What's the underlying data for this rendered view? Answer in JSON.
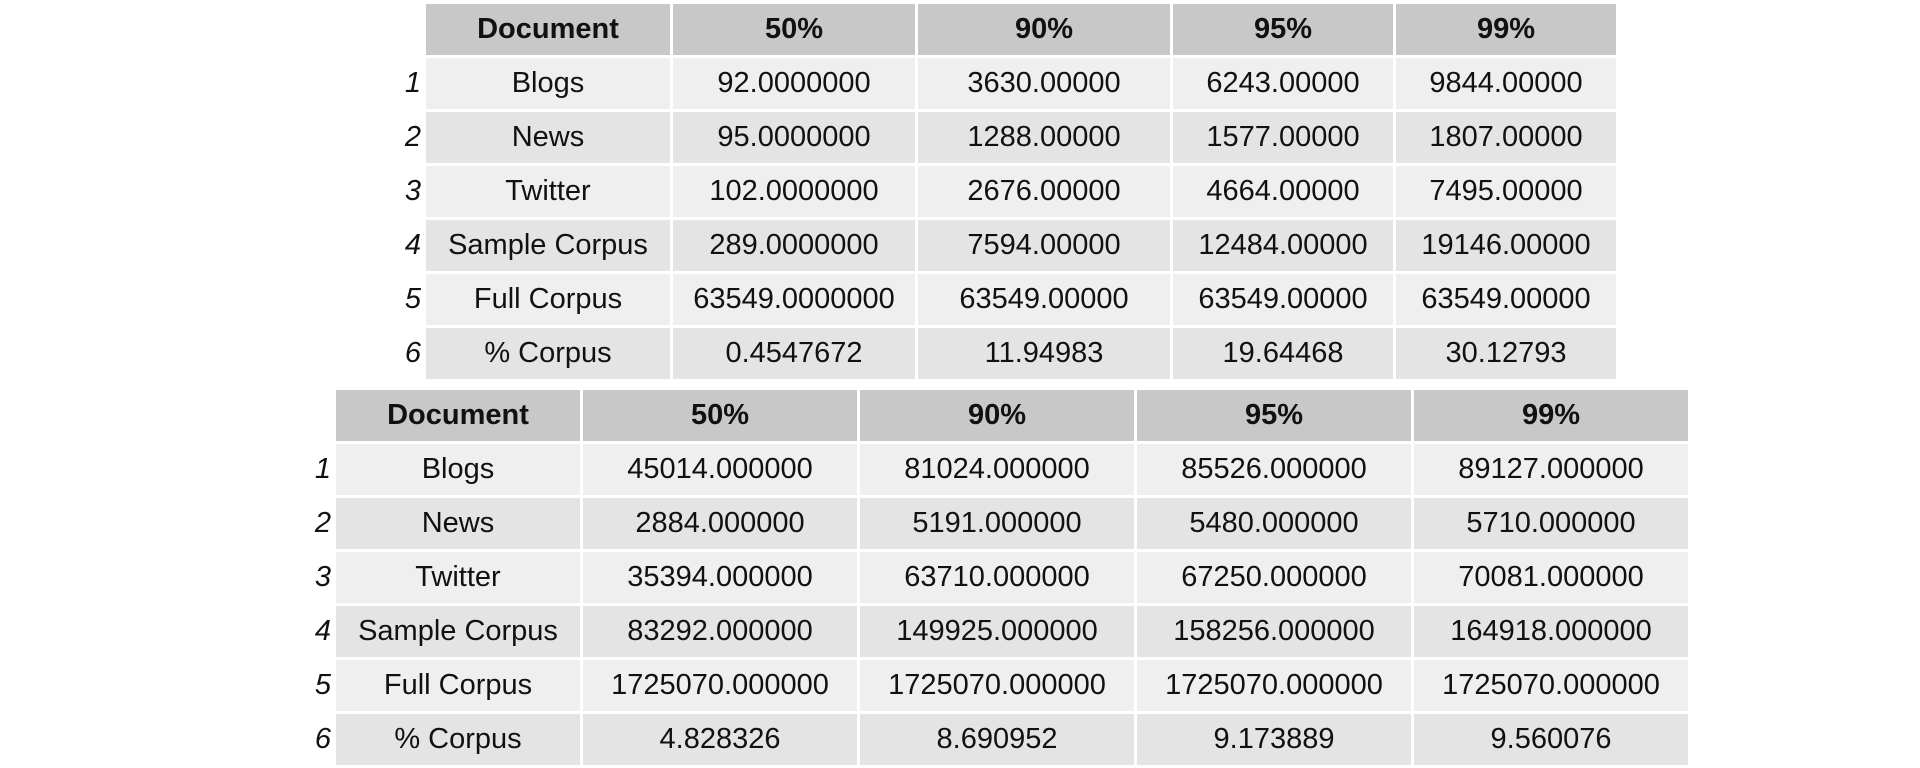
{
  "tables": [
    {
      "headers": [
        "Document",
        "50%",
        "90%",
        "95%",
        "99%"
      ],
      "rows": [
        {
          "n": "1",
          "cells": [
            "Blogs",
            "92.0000000",
            "3630.00000",
            "6243.00000",
            "9844.00000"
          ]
        },
        {
          "n": "2",
          "cells": [
            "News",
            "95.0000000",
            "1288.00000",
            "1577.00000",
            "1807.00000"
          ]
        },
        {
          "n": "3",
          "cells": [
            "Twitter",
            "102.0000000",
            "2676.00000",
            "4664.00000",
            "7495.00000"
          ]
        },
        {
          "n": "4",
          "cells": [
            "Sample Corpus",
            "289.0000000",
            "7594.00000",
            "12484.00000",
            "19146.00000"
          ]
        },
        {
          "n": "5",
          "cells": [
            "Full Corpus",
            "63549.0000000",
            "63549.00000",
            "63549.00000",
            "63549.00000"
          ]
        },
        {
          "n": "6",
          "cells": [
            "% Corpus",
            "0.4547672",
            "11.94983",
            "19.64468",
            "30.12793"
          ]
        }
      ]
    },
    {
      "headers": [
        "Document",
        "50%",
        "90%",
        "95%",
        "99%"
      ],
      "rows": [
        {
          "n": "1",
          "cells": [
            "Blogs",
            "45014.000000",
            "81024.000000",
            "85526.000000",
            "89127.000000"
          ]
        },
        {
          "n": "2",
          "cells": [
            "News",
            "2884.000000",
            "5191.000000",
            "5480.000000",
            "5710.000000"
          ]
        },
        {
          "n": "3",
          "cells": [
            "Twitter",
            "35394.000000",
            "63710.000000",
            "67250.000000",
            "70081.000000"
          ]
        },
        {
          "n": "4",
          "cells": [
            "Sample Corpus",
            "83292.000000",
            "149925.000000",
            "158256.000000",
            "164918.000000"
          ]
        },
        {
          "n": "5",
          "cells": [
            "Full Corpus",
            "1725070.000000",
            "1725070.000000",
            "1725070.000000",
            "1725070.000000"
          ]
        },
        {
          "n": "6",
          "cells": [
            "% Corpus",
            "4.828326",
            "8.690952",
            "9.173889",
            "9.560076"
          ]
        }
      ]
    }
  ]
}
